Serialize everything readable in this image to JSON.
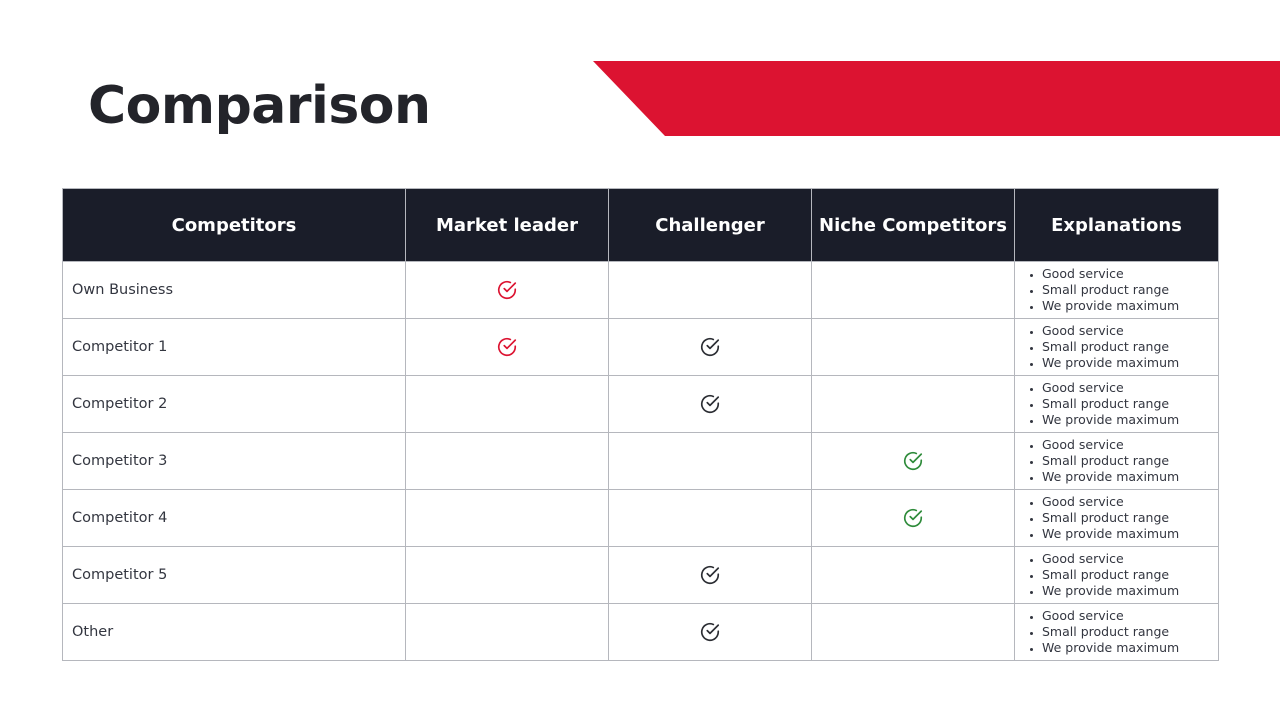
{
  "slide": {
    "title": "Comparison",
    "accent_color": "#dc1331",
    "header_bg": "#1a1d29"
  },
  "table": {
    "headers": [
      "Competitors",
      "Market leader",
      "Challenger",
      "Niche Competitors",
      "Explanations"
    ],
    "check_icon": "check-circle-icon",
    "check_colors": {
      "red": "#dc1331",
      "dark": "#2b2d33",
      "green": "#2e8b3a"
    },
    "rows": [
      {
        "name": "Own Business",
        "market_leader": "red",
        "challenger": null,
        "niche": null,
        "explanations": [
          "Good service",
          "Small product range",
          "We provide maximum"
        ]
      },
      {
        "name": "Competitor 1",
        "market_leader": "red",
        "challenger": "dark",
        "niche": null,
        "explanations": [
          "Good service",
          "Small product range",
          "We provide maximum"
        ]
      },
      {
        "name": "Competitor 2",
        "market_leader": null,
        "challenger": "dark",
        "niche": null,
        "explanations": [
          "Good service",
          "Small product range",
          "We provide maximum"
        ]
      },
      {
        "name": "Competitor 3",
        "market_leader": null,
        "challenger": null,
        "niche": "green",
        "explanations": [
          "Good service",
          "Small product range",
          "We provide maximum"
        ]
      },
      {
        "name": "Competitor 4",
        "market_leader": null,
        "challenger": null,
        "niche": "green",
        "explanations": [
          "Good service",
          "Small product range",
          "We provide maximum"
        ]
      },
      {
        "name": "Competitor 5",
        "market_leader": null,
        "challenger": "dark",
        "niche": null,
        "explanations": [
          "Good service",
          "Small product range",
          "We provide maximum"
        ]
      },
      {
        "name": "Other",
        "market_leader": null,
        "challenger": "dark",
        "niche": null,
        "explanations": [
          "Good service",
          "Small product range",
          "We provide maximum"
        ]
      }
    ]
  }
}
